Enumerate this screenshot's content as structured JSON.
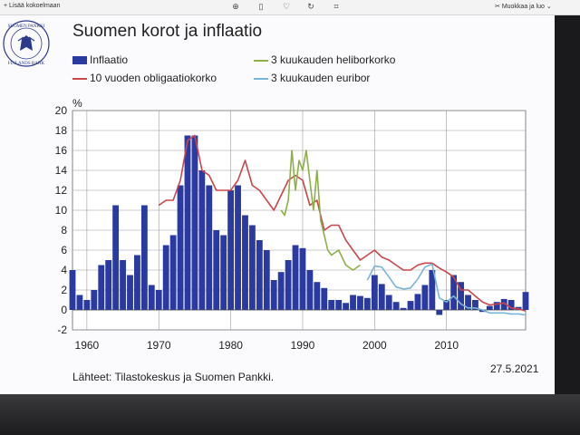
{
  "toolbar": {
    "add_label": "Lisää kokoelmaan",
    "edit_label": "Muokkaa ja luo",
    "icons": [
      "zoom-in-icon",
      "delete-icon",
      "heart-icon",
      "rotate-icon",
      "crop-icon"
    ]
  },
  "logo": {
    "upper_text": "SUOMEN PANKKI",
    "lower_text": "FINLANDS BANK"
  },
  "chart_data": {
    "type": "bar+line",
    "title": "Suomen korot ja inflaatio",
    "ylabel": "%",
    "xlim": [
      1958,
      2021
    ],
    "ylim": [
      -2,
      20
    ],
    "yticks": [
      -2,
      0,
      2,
      4,
      6,
      8,
      10,
      12,
      14,
      16,
      18,
      20
    ],
    "xticks": [
      1960,
      1970,
      1980,
      1990,
      2000,
      2010
    ],
    "grid": true,
    "legend_placement": "top",
    "colors": {
      "inflation": "#2b3aa0",
      "bond": "#c9464a",
      "helibor": "#8db04a",
      "euribor": "#79b4da"
    },
    "series": [
      {
        "name": "Inflaatio",
        "kind": "bar",
        "x": [
          1958,
          1959,
          1960,
          1961,
          1962,
          1963,
          1964,
          1965,
          1966,
          1967,
          1968,
          1969,
          1970,
          1971,
          1972,
          1973,
          1974,
          1975,
          1976,
          1977,
          1978,
          1979,
          1980,
          1981,
          1982,
          1983,
          1984,
          1985,
          1986,
          1987,
          1988,
          1989,
          1990,
          1991,
          1992,
          1993,
          1994,
          1995,
          1996,
          1997,
          1998,
          1999,
          2000,
          2001,
          2002,
          2003,
          2004,
          2005,
          2006,
          2007,
          2008,
          2009,
          2010,
          2011,
          2012,
          2013,
          2014,
          2015,
          2016,
          2017,
          2018,
          2019,
          2020,
          2021
        ],
        "values": [
          4.0,
          1.5,
          1.0,
          2.0,
          4.5,
          5.0,
          10.5,
          5.0,
          3.5,
          5.5,
          10.5,
          2.5,
          2.0,
          6.5,
          7.5,
          12.5,
          17.5,
          17.5,
          14.0,
          12.5,
          8.0,
          7.5,
          12.0,
          12.5,
          9.5,
          8.5,
          7.0,
          6.0,
          3.0,
          3.8,
          5.0,
          6.5,
          6.2,
          4.0,
          2.8,
          2.2,
          1.0,
          1.0,
          0.7,
          1.5,
          1.4,
          1.2,
          3.5,
          2.6,
          1.5,
          0.8,
          0.2,
          0.9,
          1.6,
          2.5,
          4.0,
          -0.5,
          1.0,
          3.5,
          2.8,
          1.5,
          1.0,
          -0.2,
          0.4,
          0.8,
          1.1,
          1.0,
          0.3,
          1.8
        ]
      },
      {
        "name": "10 vuoden obligaatiokorko",
        "kind": "line",
        "x": [
          1970,
          1971,
          1972,
          1973,
          1974,
          1975,
          1976,
          1977,
          1978,
          1979,
          1980,
          1981,
          1982,
          1983,
          1984,
          1985,
          1986,
          1987,
          1988,
          1989,
          1990,
          1991,
          1992,
          1993,
          1994,
          1995,
          1996,
          1997,
          1998,
          1999,
          2000,
          2001,
          2002,
          2003,
          2004,
          2005,
          2006,
          2007,
          2008,
          2009,
          2010,
          2011,
          2012,
          2013,
          2014,
          2015,
          2016,
          2017,
          2018,
          2019,
          2020,
          2021
        ],
        "values": [
          10.5,
          11.0,
          11.0,
          13.0,
          17.0,
          17.5,
          14.0,
          13.5,
          12.0,
          12.0,
          12.0,
          13.0,
          15.0,
          12.5,
          12.0,
          11.0,
          10.0,
          11.5,
          13.0,
          13.5,
          13.0,
          10.5,
          11.0,
          8.0,
          8.5,
          8.5,
          7.0,
          6.0,
          5.0,
          5.5,
          6.0,
          5.3,
          5.0,
          4.5,
          4.0,
          4.0,
          4.5,
          4.7,
          4.7,
          4.2,
          3.8,
          3.3,
          2.0,
          2.0,
          1.4,
          0.8,
          0.5,
          0.6,
          0.7,
          0.2,
          0.1,
          -0.1
        ]
      },
      {
        "name": "3 kuukauden heliborkorko",
        "kind": "line",
        "x": [
          1987,
          1987.5,
          1988,
          1988.5,
          1989,
          1989.5,
          1990,
          1990.5,
          1991,
          1991.5,
          1992,
          1992.5,
          1993,
          1993.5,
          1994,
          1995,
          1996,
          1997,
          1998
        ],
        "values": [
          10.0,
          9.5,
          11.0,
          16.0,
          12.0,
          15.0,
          14.0,
          16.0,
          13.0,
          10.0,
          14.0,
          9.0,
          7.5,
          6.0,
          5.5,
          6.0,
          4.5,
          4.0,
          4.5
        ]
      },
      {
        "name": "3 kuukauden euribor",
        "kind": "line",
        "x": [
          1999,
          2000,
          2001,
          2002,
          2003,
          2004,
          2005,
          2006,
          2007,
          2008,
          2009,
          2010,
          2011,
          2012,
          2013,
          2014,
          2015,
          2016,
          2017,
          2018,
          2019,
          2020,
          2021
        ],
        "values": [
          3.0,
          4.4,
          4.3,
          3.3,
          2.3,
          2.1,
          2.2,
          3.1,
          4.3,
          4.6,
          1.2,
          0.8,
          1.4,
          0.6,
          0.2,
          0.2,
          0.0,
          -0.3,
          -0.3,
          -0.3,
          -0.4,
          -0.4,
          -0.5
        ]
      }
    ]
  },
  "footer": {
    "source": "Lähteet: Tilastokeskus ja Suomen Pankki.",
    "date": "27.5.2021"
  }
}
